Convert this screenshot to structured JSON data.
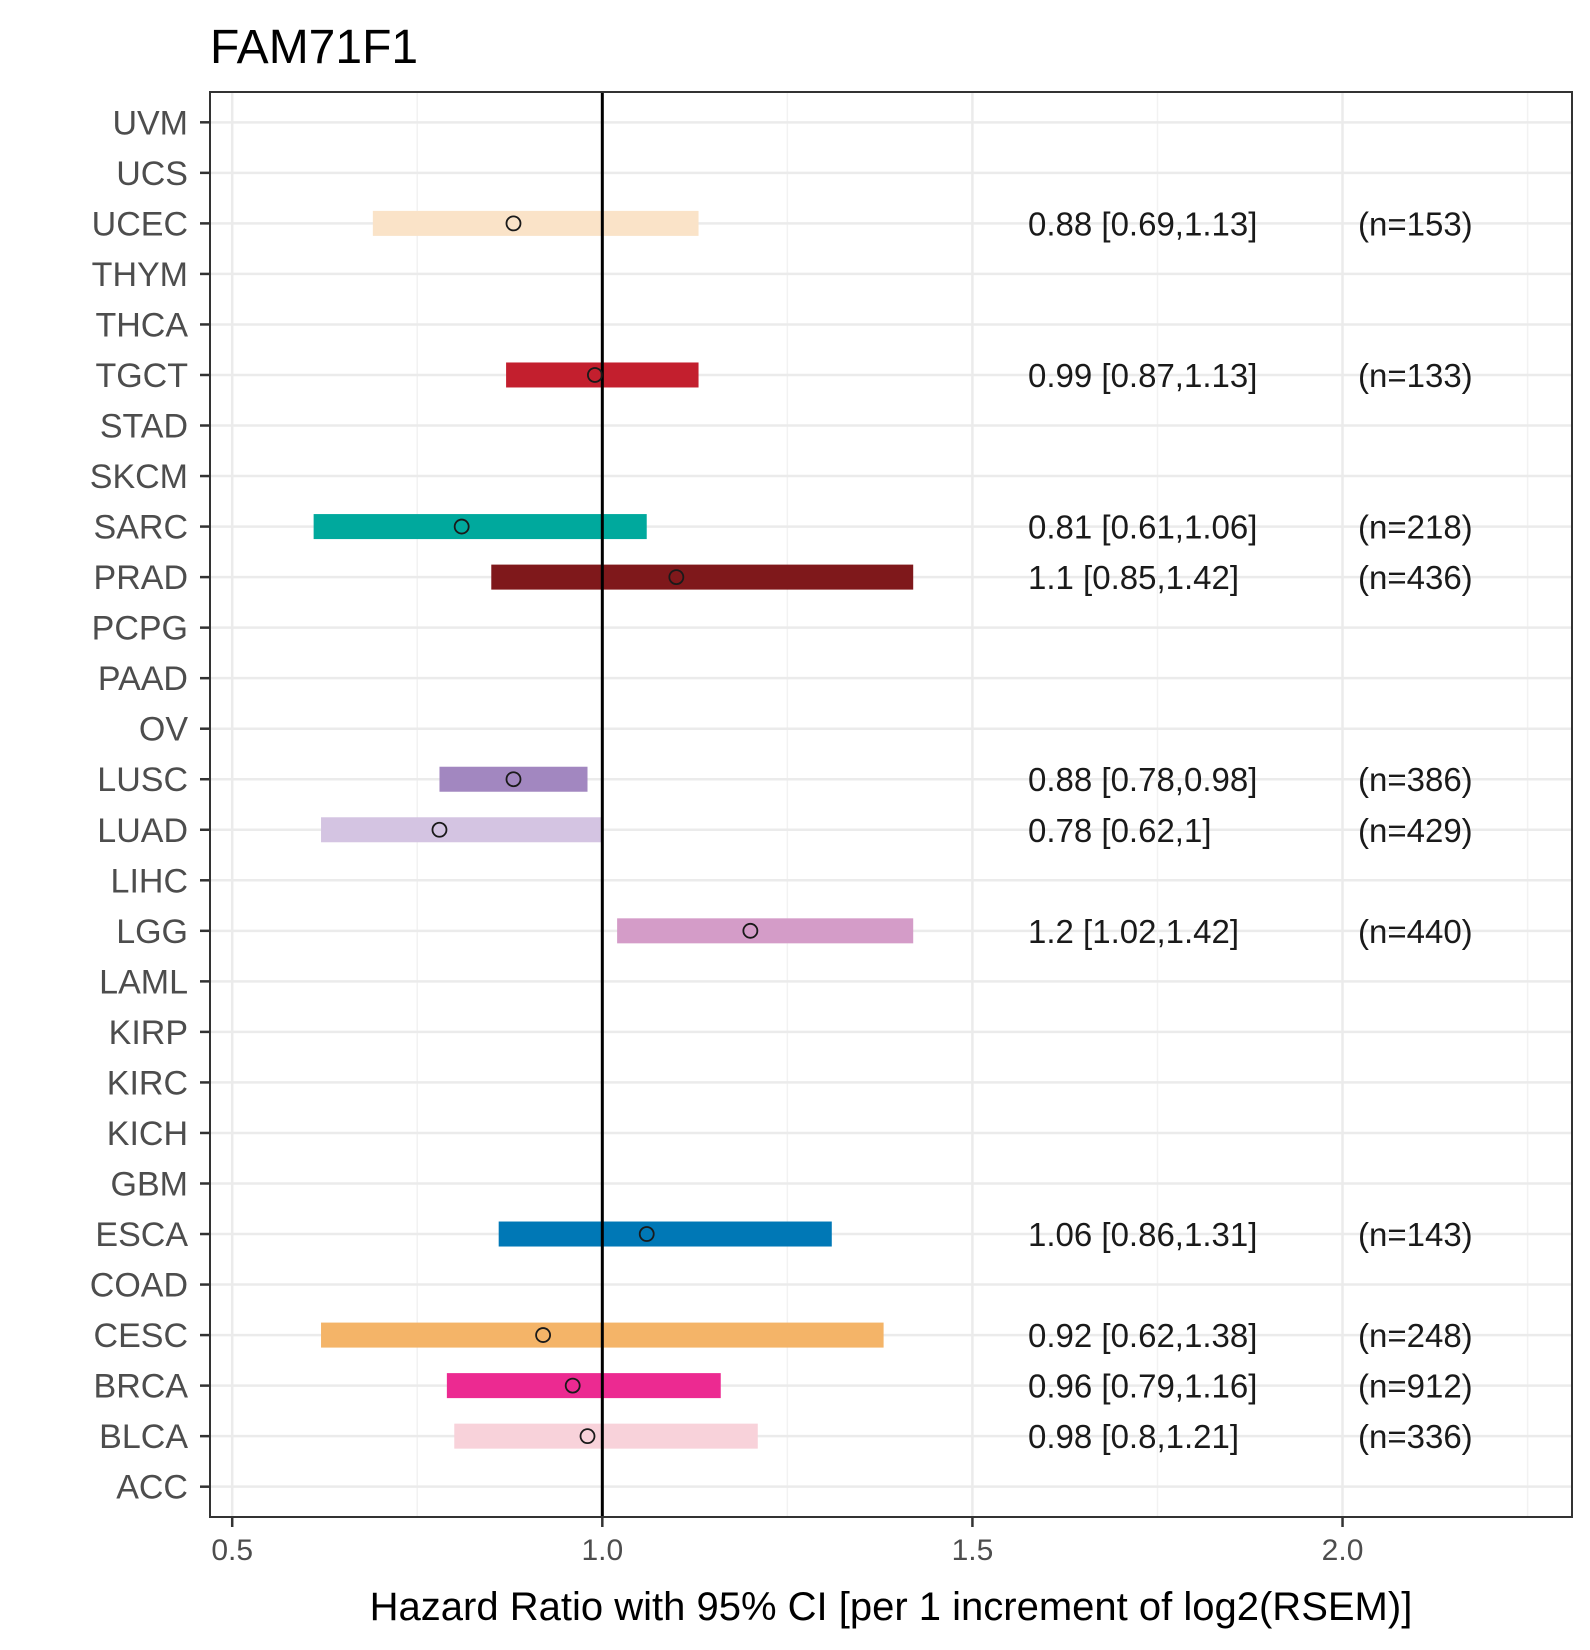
{
  "chart_data": {
    "type": "forest",
    "title": "FAM71F1",
    "xlabel": "Hazard Ratio with 95% CI [per 1 increment of log2(RSEM)]",
    "ylabel": "",
    "xlim": [
      0.47,
      2.31
    ],
    "xticks": [
      0.5,
      1.0,
      1.5,
      2.0
    ],
    "xtick_labels": [
      "0.5",
      "1.0",
      "1.5",
      "2.0"
    ],
    "reference_line": 1.0,
    "grid": true,
    "categories": [
      "UVM",
      "UCS",
      "UCEC",
      "THYM",
      "THCA",
      "TGCT",
      "STAD",
      "SKCM",
      "SARC",
      "PRAD",
      "PCPG",
      "PAAD",
      "OV",
      "LUSC",
      "LUAD",
      "LIHC",
      "LGG",
      "LAML",
      "KIRP",
      "KIRC",
      "KICH",
      "GBM",
      "ESCA",
      "COAD",
      "CESC",
      "BRCA",
      "BLCA",
      "ACC"
    ],
    "estimates": [
      {
        "cancer": "UCEC",
        "hr": 0.88,
        "lower": 0.69,
        "upper": 1.13,
        "label": "0.88 [0.69,1.13]",
        "n": "(n=153)",
        "color": "#FAE3C8"
      },
      {
        "cancer": "TGCT",
        "hr": 0.99,
        "lower": 0.87,
        "upper": 1.13,
        "label": "0.99 [0.87,1.13]",
        "n": "(n=133)",
        "color": "#C31F2E"
      },
      {
        "cancer": "SARC",
        "hr": 0.81,
        "lower": 0.61,
        "upper": 1.06,
        "label": "0.81 [0.61,1.06]",
        "n": "(n=218)",
        "color": "#00A99D"
      },
      {
        "cancer": "PRAD",
        "hr": 1.1,
        "lower": 0.85,
        "upper": 1.42,
        "label": "1.1 [0.85,1.42]",
        "n": "(n=436)",
        "color": "#7F181B"
      },
      {
        "cancer": "LUSC",
        "hr": 0.88,
        "lower": 0.78,
        "upper": 0.98,
        "label": "0.88 [0.78,0.98]",
        "n": "(n=386)",
        "color": "#A287C0"
      },
      {
        "cancer": "LUAD",
        "hr": 0.78,
        "lower": 0.62,
        "upper": 1.0,
        "label": "0.78 [0.62,1]",
        "n": "(n=429)",
        "color": "#D4C4E2"
      },
      {
        "cancer": "LGG",
        "hr": 1.2,
        "lower": 1.02,
        "upper": 1.42,
        "label": "1.2 [1.02,1.42]",
        "n": "(n=440)",
        "color": "#D49CC8"
      },
      {
        "cancer": "ESCA",
        "hr": 1.06,
        "lower": 0.86,
        "upper": 1.31,
        "label": "1.06 [0.86,1.31]",
        "n": "(n=143)",
        "color": "#0078B6"
      },
      {
        "cancer": "CESC",
        "hr": 0.92,
        "lower": 0.62,
        "upper": 1.38,
        "label": "0.92 [0.62,1.38]",
        "n": "(n=248)",
        "color": "#F4B468"
      },
      {
        "cancer": "BRCA",
        "hr": 0.96,
        "lower": 0.79,
        "upper": 1.16,
        "label": "0.96 [0.79,1.16]",
        "n": "(n=912)",
        "color": "#EC2A91"
      },
      {
        "cancer": "BLCA",
        "hr": 0.98,
        "lower": 0.8,
        "upper": 1.21,
        "label": "0.98 [0.8,1.21]",
        "n": "(n=336)",
        "color": "#F8D2DA"
      }
    ]
  }
}
